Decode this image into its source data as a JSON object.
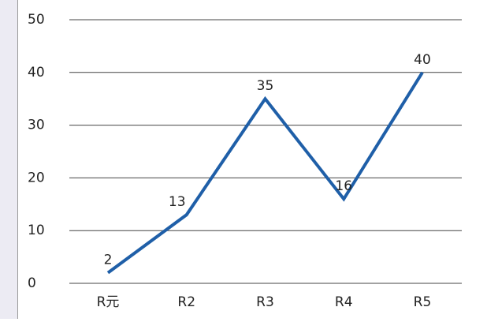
{
  "chart_data": {
    "type": "line",
    "categories": [
      "R元",
      "R2",
      "R3",
      "R4",
      "R5"
    ],
    "series": [
      {
        "name": "series",
        "color": "#1f5fa8",
        "values": [
          2,
          13,
          35,
          16,
          40
        ]
      }
    ],
    "ylim": [
      0,
      50
    ],
    "yticks": [
      0,
      10,
      20,
      30,
      40,
      50
    ],
    "grid": true
  }
}
